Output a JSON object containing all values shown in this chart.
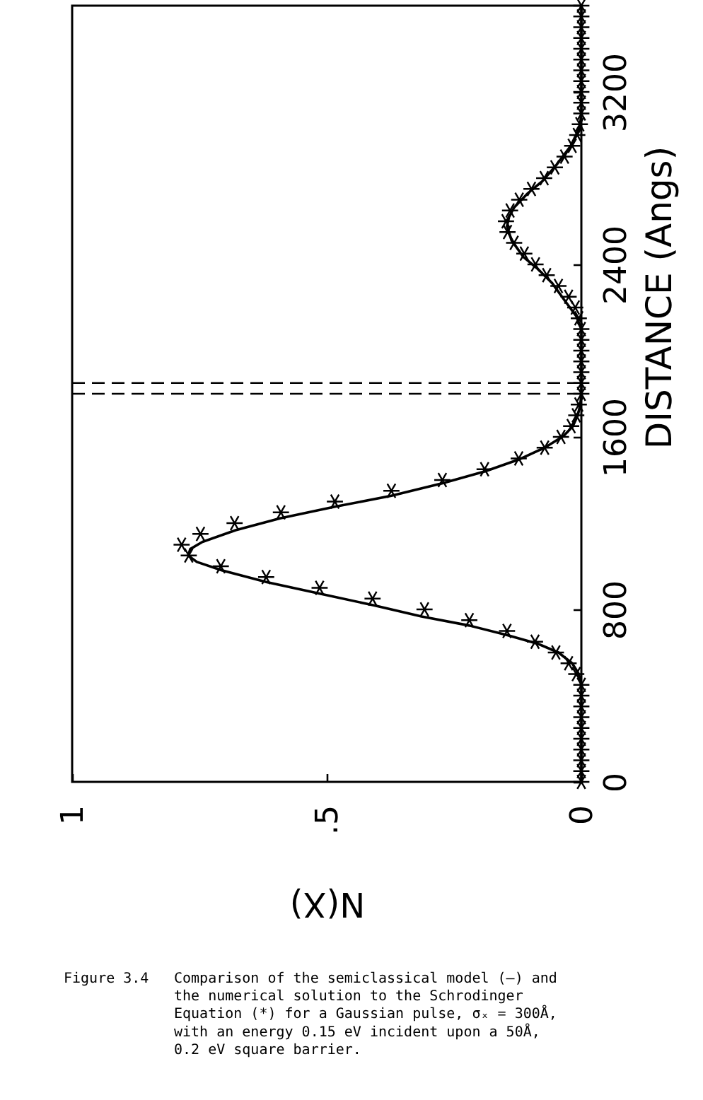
{
  "chart_data": {
    "type": "line",
    "xlabel": "N(X)",
    "ylabel": "DISTANCE (Angs)",
    "xlim": [
      1,
      0
    ],
    "xticks": [
      1,
      {
        "value": 0.5,
        "label": ".5"
      },
      0
    ],
    "ylim": [
      0,
      3600
    ],
    "yticks": [
      0,
      800,
      1600,
      2400,
      3200
    ],
    "series": [
      {
        "color": "#000000",
        "line_style": "solid",
        "x": [
          0,
          0,
          0.005,
          0.018,
          0.045,
          0.085,
          0.145,
          0.22,
          0.314,
          0.406,
          0.512,
          0.619,
          0.706,
          0.755,
          0.772,
          0.768,
          0.744,
          0.679,
          0.592,
          0.484,
          0.373,
          0.271,
          0.188,
          0.123,
          0.072,
          0.035,
          0.017,
          0.007,
          0.002,
          0,
          0,
          0.01,
          0.031,
          0.058,
          0.086,
          0.114,
          0.137,
          0.146,
          0.142,
          0.132,
          0.105,
          0.077,
          0.049,
          0.021,
          0.003,
          0,
          0
        ],
        "values": [
          0,
          450,
          500,
          550,
          600,
          640,
          680,
          725,
          767,
          818,
          872,
          927,
          981,
          1020,
          1049,
          1080,
          1113,
          1167,
          1222,
          1276,
          1327,
          1386,
          1441,
          1495,
          1550,
          1604,
          1648,
          1700,
          1750,
          1800,
          2100,
          2160,
          2227,
          2315,
          2380,
          2435,
          2511,
          2577,
          2620,
          2664,
          2730,
          2785,
          2861,
          2949,
          3036,
          3100,
          3600
        ]
      },
      {
        "type": "scatter",
        "color": "#000000",
        "marker": "cross",
        "x": [
          0,
          0,
          0,
          0,
          0,
          0,
          0,
          0,
          0,
          0,
          0.01,
          0.025,
          0.05,
          0.091,
          0.146,
          0.22,
          0.308,
          0.41,
          0.514,
          0.619,
          0.708,
          0.771,
          0.785,
          0.748,
          0.681,
          0.59,
          0.484,
          0.373,
          0.273,
          0.19,
          0.123,
          0.072,
          0.04,
          0.02,
          0.01,
          0.005,
          0,
          0,
          0,
          0,
          0,
          0,
          0,
          0.005,
          0.012,
          0.025,
          0.045,
          0.068,
          0.09,
          0.112,
          0.132,
          0.145,
          0.148,
          0.14,
          0.122,
          0.098,
          0.073,
          0.052,
          0.033,
          0.018,
          0.008,
          0.003,
          0,
          0,
          0,
          0,
          0,
          0,
          0,
          0,
          0,
          0,
          0
        ],
        "values": [
          0,
          50,
          100,
          150,
          200,
          250,
          300,
          350,
          400,
          450,
          500,
          550,
          600,
          650,
          700,
          750,
          800,
          850,
          900,
          950,
          1000,
          1050,
          1100,
          1150,
          1200,
          1250,
          1300,
          1350,
          1400,
          1450,
          1500,
          1550,
          1600,
          1650,
          1700,
          1750,
          1800,
          1850,
          1900,
          1950,
          2000,
          2050,
          2100,
          2150,
          2200,
          2250,
          2300,
          2350,
          2400,
          2450,
          2500,
          2550,
          2600,
          2650,
          2700,
          2750,
          2800,
          2850,
          2900,
          2950,
          3000,
          3050,
          3100,
          3150,
          3200,
          3250,
          3300,
          3350,
          3400,
          3450,
          3500,
          3550,
          3600
        ]
      }
    ],
    "ref_lines": [
      {
        "axis": "y",
        "value": 1800,
        "color": "#000000",
        "line_style": "dashed"
      },
      {
        "axis": "y",
        "value": 1850,
        "color": "#000000",
        "line_style": "dashed"
      }
    ],
    "annotations": [
      "Figure 3.4",
      "Comparison of the semiclassical model (—) and\nthe numerical solution to the Schrodinger\nEquation (*) for a Gaussian pulse, σₓ = 300Å,\nwith an energy 0.15 eV incident upon a 50Å,\n0.2 eV square barrier."
    ]
  }
}
